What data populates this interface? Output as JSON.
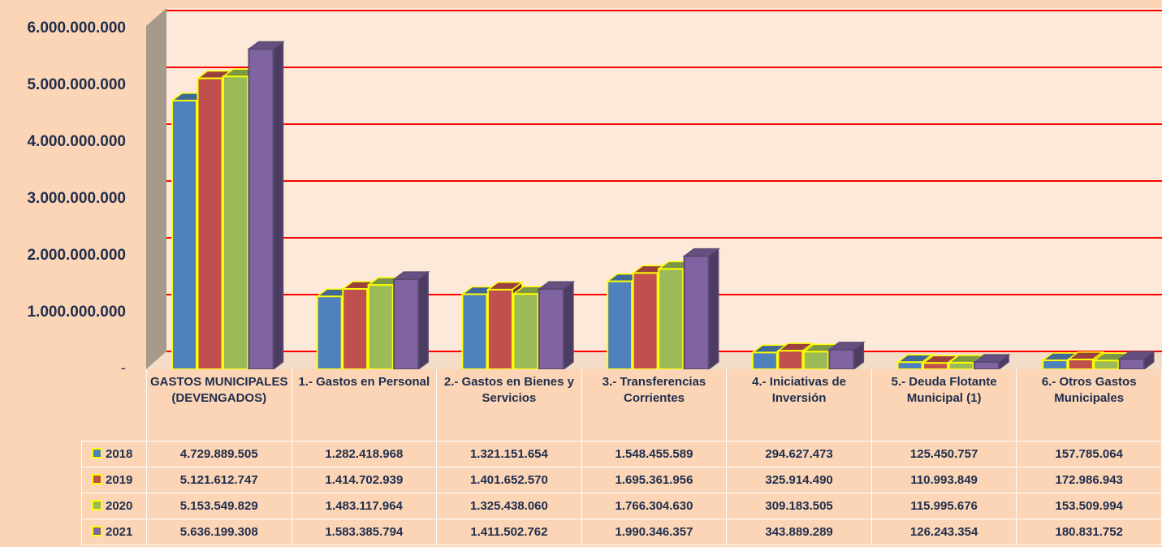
{
  "chart_data": {
    "type": "bar3d",
    "categories": [
      "GASTOS MUNICIPALES (DEVENGADOS)",
      "1.- Gastos en Personal",
      "2.- Gastos en Bienes y Servicios",
      "3.- Transferencias Corrientes",
      "4.- Iniciativas de Inversión",
      "5.- Deuda Flotante Municipal (1)",
      "6.- Otros Gastos Municipales"
    ],
    "series": [
      {
        "name": "2018",
        "color": "#4f81bd",
        "values": [
          4729889505,
          1282418968,
          1321151654,
          1548455589,
          294627473,
          125450757,
          157785064
        ],
        "value_labels": [
          "4.729.889.505",
          "1.282.418.968",
          "1.321.151.654",
          "1.548.455.589",
          "294.627.473",
          "125.450.757",
          "157.785.064"
        ]
      },
      {
        "name": "2019",
        "color": "#c0504d",
        "values": [
          5121612747,
          1414702939,
          1401652570,
          1695361956,
          325914490,
          110993849,
          172986943
        ],
        "value_labels": [
          "5.121.612.747",
          "1.414.702.939",
          "1.401.652.570",
          "1.695.361.956",
          "325.914.490",
          "110.993.849",
          "172.986.943"
        ]
      },
      {
        "name": "2020",
        "color": "#9bbb59",
        "values": [
          5153549829,
          1483117964,
          1325438060,
          1766304630,
          309183505,
          115995676,
          153509994
        ],
        "value_labels": [
          "5.153.549.829",
          "1.483.117.964",
          "1.325.438.060",
          "1.766.304.630",
          "309.183.505",
          "115.995.676",
          "153.509.994"
        ]
      },
      {
        "name": "2021",
        "color": "#8064a2",
        "values": [
          5636199308,
          1583385794,
          1411502762,
          1990346357,
          343889289,
          126243354,
          180831752
        ],
        "value_labels": [
          "5.636.199.308",
          "1.583.385.794",
          "1.411.502.762",
          "1.990.346.357",
          "343.889.289",
          "126.243.354",
          "180.831.752"
        ]
      }
    ],
    "ylim": [
      0,
      6000000000
    ],
    "yticks": [
      {
        "value": 0,
        "label": "-"
      },
      {
        "value": 1000000000,
        "label": "1.000.000.000"
      },
      {
        "value": 2000000000,
        "label": "2.000.000.000"
      },
      {
        "value": 3000000000,
        "label": "3.000.000.000"
      },
      {
        "value": 4000000000,
        "label": "4.000.000.000"
      },
      {
        "value": 5000000000,
        "label": "5.000.000.000"
      },
      {
        "value": 6000000000,
        "label": "6.000.000.000"
      }
    ],
    "grid": true,
    "grid_color": "#ff0000"
  }
}
